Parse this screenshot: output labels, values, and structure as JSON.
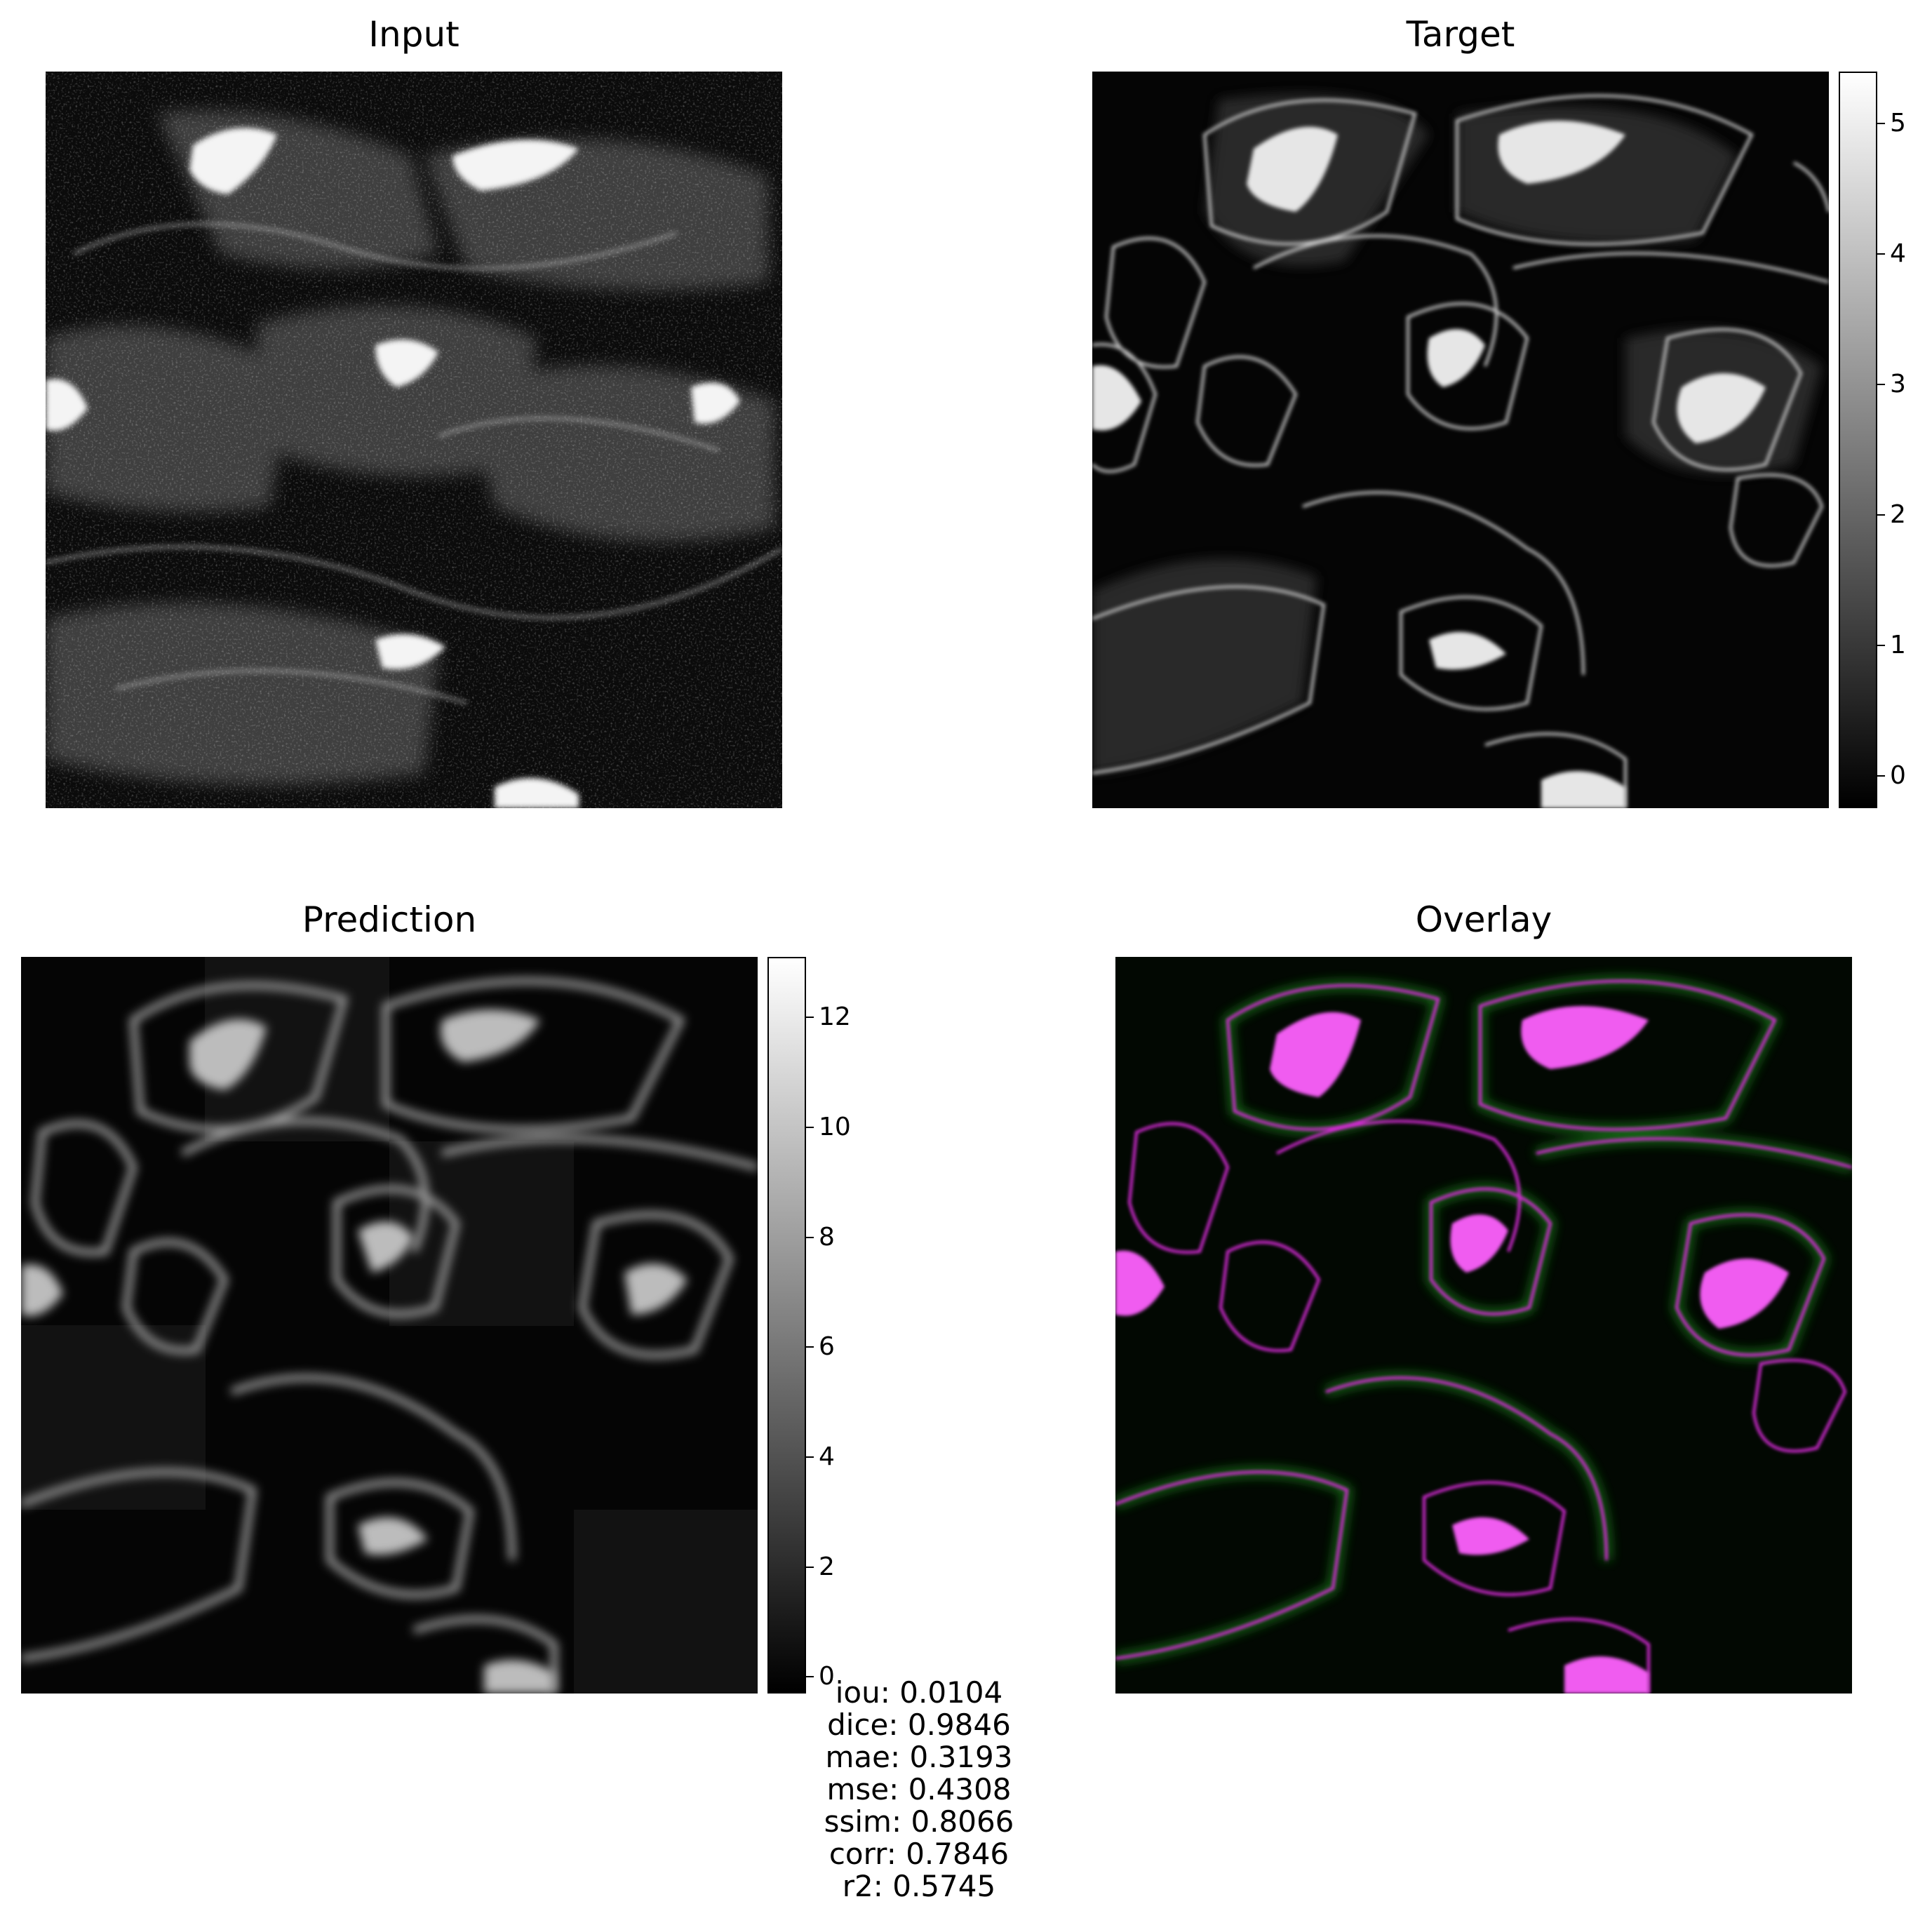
{
  "panels": {
    "input": {
      "title": "Input"
    },
    "target": {
      "title": "Target"
    },
    "prediction": {
      "title": "Prediction"
    },
    "overlay": {
      "title": "Overlay"
    }
  },
  "colorbars": {
    "target": {
      "ticks": [
        "0",
        "1",
        "2",
        "3",
        "4",
        "5"
      ],
      "range": [
        -0.25,
        5.4
      ]
    },
    "prediction": {
      "ticks": [
        "0",
        "2",
        "4",
        "6",
        "8",
        "10",
        "12"
      ],
      "range": [
        -0.3,
        13.1
      ]
    }
  },
  "colors": {
    "overlay_target": "#ff00ff",
    "overlay_prediction": "#00ff00",
    "background": "#000000"
  },
  "metrics": [
    "iou: 0.0104",
    "dice: 0.9846",
    "mae: 0.3193",
    "mse: 0.4308",
    "ssim: 0.8066",
    "corr: 0.7846",
    "r2: 0.5745"
  ]
}
